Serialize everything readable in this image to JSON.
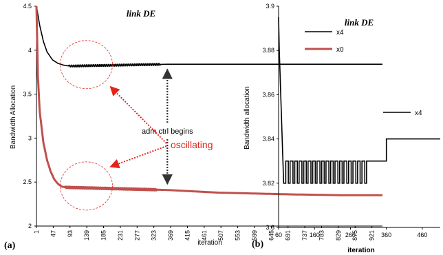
{
  "chart_data": [
    {
      "panel_label": "(a)",
      "type": "line",
      "title": "link DE",
      "xlabel": "iteration",
      "ylabel": "Bandwidth Allocation",
      "ylim": [
        2,
        4.5
      ],
      "xlim": [
        1,
        950
      ],
      "yticks": [
        "2",
        "2.5",
        "3",
        "3.5",
        "4",
        "4.5"
      ],
      "xticks": [
        "1",
        "47",
        "93",
        "139",
        "185",
        "231",
        "277",
        "323",
        "369",
        "415",
        "461",
        "507",
        "553",
        "599",
        "645",
        "691",
        "737",
        "783",
        "829",
        "875",
        "921"
      ],
      "legend_position": "top-right",
      "series": [
        {
          "name": "x4",
          "color": "#000000",
          "x": [
            1,
            10,
            20,
            30,
            45,
            60,
            75,
            90,
            100,
            360,
            950
          ],
          "y": [
            4.5,
            4.28,
            4.1,
            3.98,
            3.89,
            3.85,
            3.83,
            3.82,
            3.82,
            3.84,
            3.84
          ],
          "oscillation_range": [
            90,
            340
          ],
          "oscillation_amplitude": 0.01
        },
        {
          "name": "x0",
          "color": "#c0504d",
          "x": [
            1,
            5,
            10,
            20,
            30,
            40,
            50,
            60,
            70,
            80,
            360,
            500,
            700,
            850,
            950
          ],
          "y": [
            4.5,
            3.7,
            3.3,
            2.95,
            2.75,
            2.62,
            2.53,
            2.48,
            2.45,
            2.44,
            2.41,
            2.38,
            2.36,
            2.35,
            2.35
          ],
          "oscillation_range": [
            80,
            330
          ],
          "oscillation_amplitude": 0.008
        }
      ],
      "annotations": {
        "adm_label": "adm ctrl begins",
        "osc_label": "oscillating",
        "adm_arrow_x": 360,
        "adm_arrow_y_top": 3.78,
        "adm_arrow_y_bottom": 2.48,
        "osc_circle_1": {
          "x": 185,
          "y": 3.82
        },
        "osc_circle_2": {
          "x": 185,
          "y": 2.44
        }
      }
    },
    {
      "panel_label": "(b)",
      "type": "line",
      "title": "link DE",
      "xlabel": "iteration",
      "ylabel": "Bandwidth allocation",
      "ylim": [
        3.8,
        3.9
      ],
      "xlim": [
        60,
        510
      ],
      "yticks": [
        "3.8",
        "3.82",
        "3.84",
        "3.86",
        "3.88",
        "3.9"
      ],
      "xticks": [
        "60",
        "160",
        "260",
        "360",
        "460"
      ],
      "legend_position": "middle-right",
      "series": [
        {
          "name": "x4",
          "color": "#000000",
          "x": [
            60,
            62,
            64,
            66,
            68,
            70,
            72,
            74,
            75,
            80,
            80,
            87,
            87,
            92,
            92,
            100,
            100,
            105,
            105,
            112,
            112,
            117,
            117,
            125,
            125,
            130,
            130,
            137,
            137,
            142,
            142,
            150,
            150,
            155,
            155,
            162,
            162,
            167,
            167,
            175,
            175,
            180,
            180,
            187,
            187,
            192,
            192,
            200,
            200,
            205,
            205,
            212,
            212,
            217,
            217,
            225,
            225,
            230,
            230,
            237,
            237,
            242,
            242,
            250,
            250,
            255,
            255,
            262,
            262,
            267,
            267,
            275,
            275,
            280,
            280,
            287,
            287,
            292,
            292,
            300,
            300,
            305,
            305,
            312,
            312,
            360,
            360,
            510
          ],
          "y": [
            3.895,
            3.88,
            3.87,
            3.86,
            3.85,
            3.84,
            3.83,
            3.82,
            3.82,
            3.82,
            3.83,
            3.83,
            3.82,
            3.82,
            3.83,
            3.83,
            3.82,
            3.82,
            3.83,
            3.83,
            3.82,
            3.82,
            3.83,
            3.83,
            3.82,
            3.82,
            3.83,
            3.83,
            3.82,
            3.82,
            3.83,
            3.83,
            3.82,
            3.82,
            3.83,
            3.83,
            3.82,
            3.82,
            3.83,
            3.83,
            3.82,
            3.82,
            3.83,
            3.83,
            3.82,
            3.82,
            3.83,
            3.83,
            3.82,
            3.82,
            3.83,
            3.83,
            3.82,
            3.82,
            3.83,
            3.83,
            3.82,
            3.82,
            3.83,
            3.83,
            3.82,
            3.82,
            3.83,
            3.83,
            3.82,
            3.82,
            3.83,
            3.83,
            3.82,
            3.82,
            3.83,
            3.83,
            3.82,
            3.82,
            3.83,
            3.83,
            3.82,
            3.82,
            3.83,
            3.83,
            3.82,
            3.82,
            3.83,
            3.83,
            3.83,
            3.83,
            3.84,
            3.84
          ]
        }
      ]
    }
  ]
}
